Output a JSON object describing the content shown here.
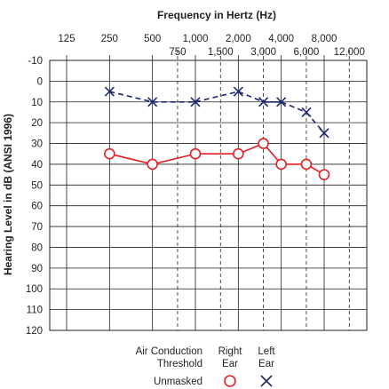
{
  "chart_data": {
    "type": "line",
    "title": "Frequency in Hertz (Hz)",
    "ylabel": "Hearing Level in dB (ANSI 1996)",
    "x_octave_ticks": [
      "125",
      "250",
      "500",
      "1,000",
      "2,000",
      "4,000",
      "8,000"
    ],
    "x_interoctave_ticks": [
      "750",
      "1,500",
      "3,000",
      "6,000",
      "12,000"
    ],
    "octave_frequencies": [
      125,
      250,
      500,
      1000,
      2000,
      4000,
      8000
    ],
    "interoctave_frequencies": [
      750,
      1500,
      3000,
      6000,
      12000
    ],
    "x_range": [
      125,
      12000
    ],
    "x_scale": "log2",
    "y_ticks": [
      "-10",
      "0",
      "10",
      "20",
      "30",
      "40",
      "50",
      "60",
      "70",
      "80",
      "90",
      "100",
      "110",
      "120"
    ],
    "ylim": [
      -10,
      120
    ],
    "y_inverted": true,
    "grid": true,
    "series": [
      {
        "ear": "right",
        "marker": "circle",
        "color": "#e31e24",
        "x": [
          250,
          500,
          1000,
          2000,
          3000,
          4000,
          6000,
          8000
        ],
        "y": [
          35,
          40,
          35,
          35,
          30,
          40,
          40,
          45
        ],
        "line_style": [
          "solid",
          "solid",
          "solid",
          "solid",
          "solid",
          "solid",
          "solid"
        ]
      },
      {
        "ear": "left",
        "marker": "x",
        "color": "#1c2770",
        "x": [
          250,
          500,
          1000,
          2000,
          3000,
          4000,
          6000,
          8000
        ],
        "y": [
          5,
          10,
          10,
          5,
          10,
          10,
          15,
          25
        ],
        "line_style": [
          "dashed",
          "dashed",
          "dashed",
          "dashed",
          "solid",
          "dashed",
          "dashed"
        ]
      }
    ],
    "legend": {
      "header_1": "Air Conduction",
      "header_2": "Threshold",
      "right_1": "Right",
      "right_2": "Ear",
      "left_1": "Left",
      "left_2": "Ear",
      "row_label": "Unmasked"
    }
  }
}
